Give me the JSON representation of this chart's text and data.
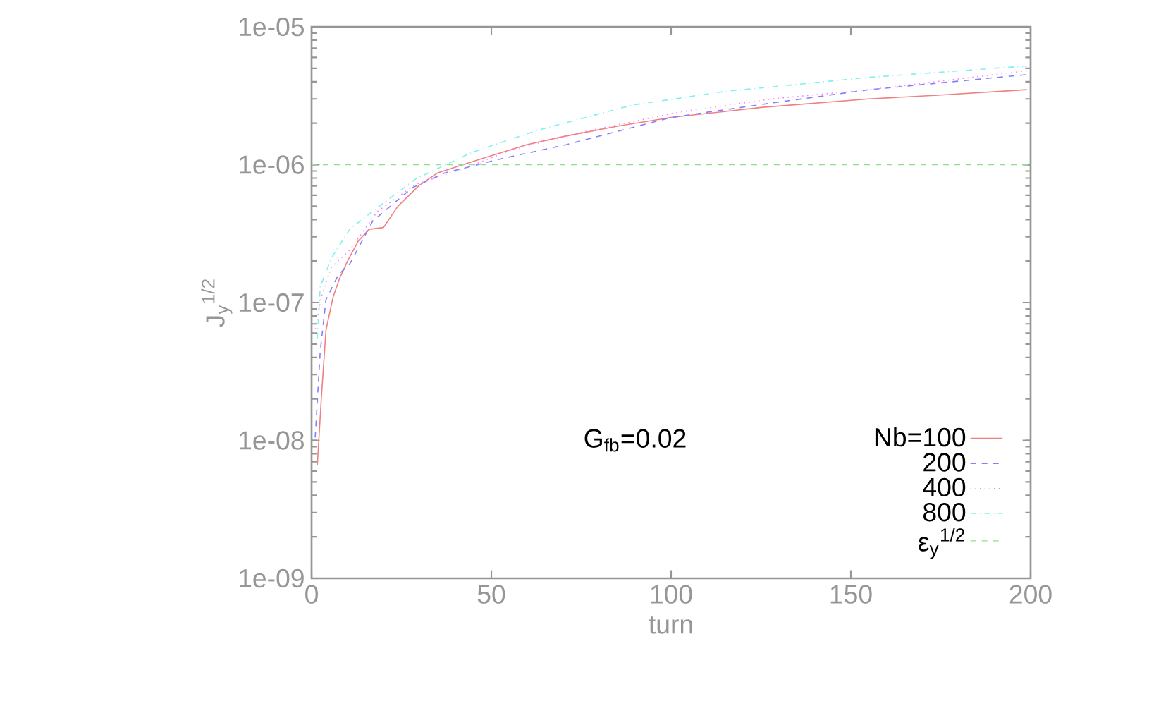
{
  "chart_data": {
    "type": "line",
    "xlabel": "turn",
    "ylabel": "J$_{y}$$^{1/2}$",
    "log": "y",
    "xlim": [
      0,
      200
    ],
    "xticks": [
      0,
      50,
      100,
      150,
      200
    ],
    "ylim": [
      1e-09,
      1e-05
    ],
    "yticks": [
      {
        "value": 1e-09,
        "label": "1e-09"
      },
      {
        "value": 1e-08,
        "label": "1e-08"
      },
      {
        "value": 1e-07,
        "label": "1e-07"
      },
      {
        "value": 1e-06,
        "label": "1e-06"
      },
      {
        "value": 1e-05,
        "label": "1e-05"
      }
    ],
    "legend": "bottom right",
    "grid": false,
    "series": [
      {
        "name": "Nb=100",
        "color": "#f08080",
        "line_style": "solid",
        "x": [
          1.6,
          2.7,
          4,
          6,
          7.8,
          10,
          13,
          16,
          20,
          24,
          30,
          35,
          47,
          60,
          70,
          85,
          100,
          125,
          155,
          175,
          199
        ],
        "values": [
          6.6e-09,
          2e-08,
          6.3e-08,
          1.1e-07,
          1.5e-07,
          2e-07,
          2.8e-07,
          3.4e-07,
          3.5e-07,
          5e-07,
          7.1e-07,
          8.7e-07,
          1.1e-06,
          1.4e-06,
          1.6e-06,
          1.9e-06,
          2.2e-06,
          2.6e-06,
          3e-06,
          3.2e-06,
          3.5e-06
        ]
      },
      {
        "name": "200",
        "color": "#8080ff",
        "line_style": "dashed",
        "x": [
          1,
          2.4,
          4,
          7.5,
          10.6,
          17,
          28,
          37,
          52.5,
          71,
          100,
          128,
          155,
          199
        ],
        "values": [
          1.05e-08,
          4.4e-08,
          1.05e-07,
          1.6e-07,
          1.9e-07,
          3.9e-07,
          6.8e-07,
          8.7e-07,
          1.1e-06,
          1.4e-06,
          2.2e-06,
          2.8e-06,
          3.5e-06,
          4.5e-06
        ]
      },
      {
        "name": "400",
        "color": "#ff80ff",
        "line_style": "dotted",
        "x": [
          0.8,
          2.7,
          5.5,
          10.6,
          18.4,
          29,
          42,
          55,
          76,
          102,
          128,
          155,
          199
        ],
        "values": [
          5.9e-08,
          1.1e-07,
          1.8e-07,
          2.4e-07,
          4.6e-07,
          7.2e-07,
          9.3e-07,
          1.26e-06,
          1.74e-06,
          2.4e-06,
          3e-06,
          3.5e-06,
          4.8e-06
        ]
      },
      {
        "name": "800",
        "color": "#80f0f0",
        "line_style": "dashdot",
        "x": [
          1.6,
          2.4,
          5.5,
          10.6,
          18.4,
          29,
          44.7,
          63,
          89,
          115,
          155,
          199
        ],
        "values": [
          5.5e-08,
          1.3e-07,
          2.1e-07,
          3.4e-07,
          4.9e-07,
          7.9e-07,
          1.23e-06,
          1.78e-06,
          2.7e-06,
          3.4e-06,
          4.3e-06,
          5.2e-06
        ]
      }
    ],
    "ref_lines": [
      {
        "axis": "y",
        "value": 1e-06,
        "label": "ε$_{y}$$^{1/2}$",
        "color": "#90e090",
        "line_style": "dashed"
      }
    ],
    "annotations": [
      "G$_{fb}$=0.02"
    ]
  }
}
